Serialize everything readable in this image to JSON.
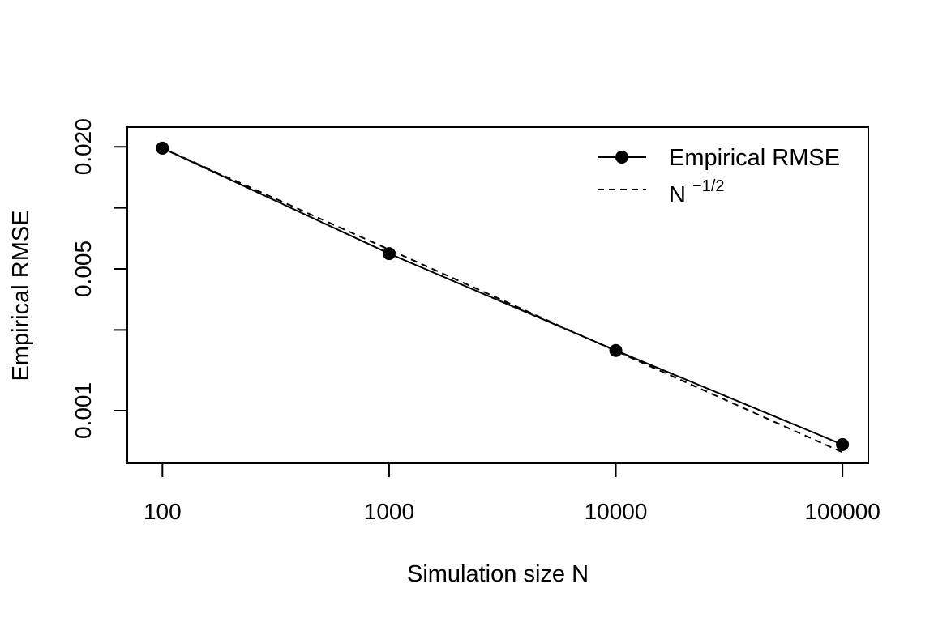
{
  "chart_data": {
    "type": "line",
    "title": "",
    "xlabel": "Simulation size N",
    "ylabel": "Empirical RMSE",
    "x_scale": "log",
    "y_scale": "log",
    "xlim": [
      70,
      130000
    ],
    "ylim": [
      0.00055,
      0.025
    ],
    "grid": false,
    "legend_position": "top-right",
    "x_ticks": [
      100,
      1000,
      10000,
      100000
    ],
    "x_tick_labels": [
      "100",
      "1000",
      "10000",
      "100000"
    ],
    "y_ticks": [
      0.001,
      0.0025,
      0.005,
      0.01,
      0.02
    ],
    "y_tick_labels": [
      "0.001",
      "",
      "0.005",
      "",
      "0.020"
    ],
    "x": [
      100,
      1000,
      10000,
      100000
    ],
    "series": [
      {
        "name": "Empirical RMSE",
        "style": "solid-with-points",
        "color": "#000000",
        "values": [
          0.0197,
          0.00595,
          0.00198,
          0.00068
        ]
      },
      {
        "name": "N^{-1/2}",
        "style": "dashed",
        "color": "#000000",
        "values": [
          0.0197,
          0.00623,
          0.00197,
          0.000623
        ]
      }
    ],
    "legend": {
      "solid_label": "Empirical RMSE",
      "dashed_label_base": "N",
      "dashed_label_exponent": "−1/2"
    }
  }
}
